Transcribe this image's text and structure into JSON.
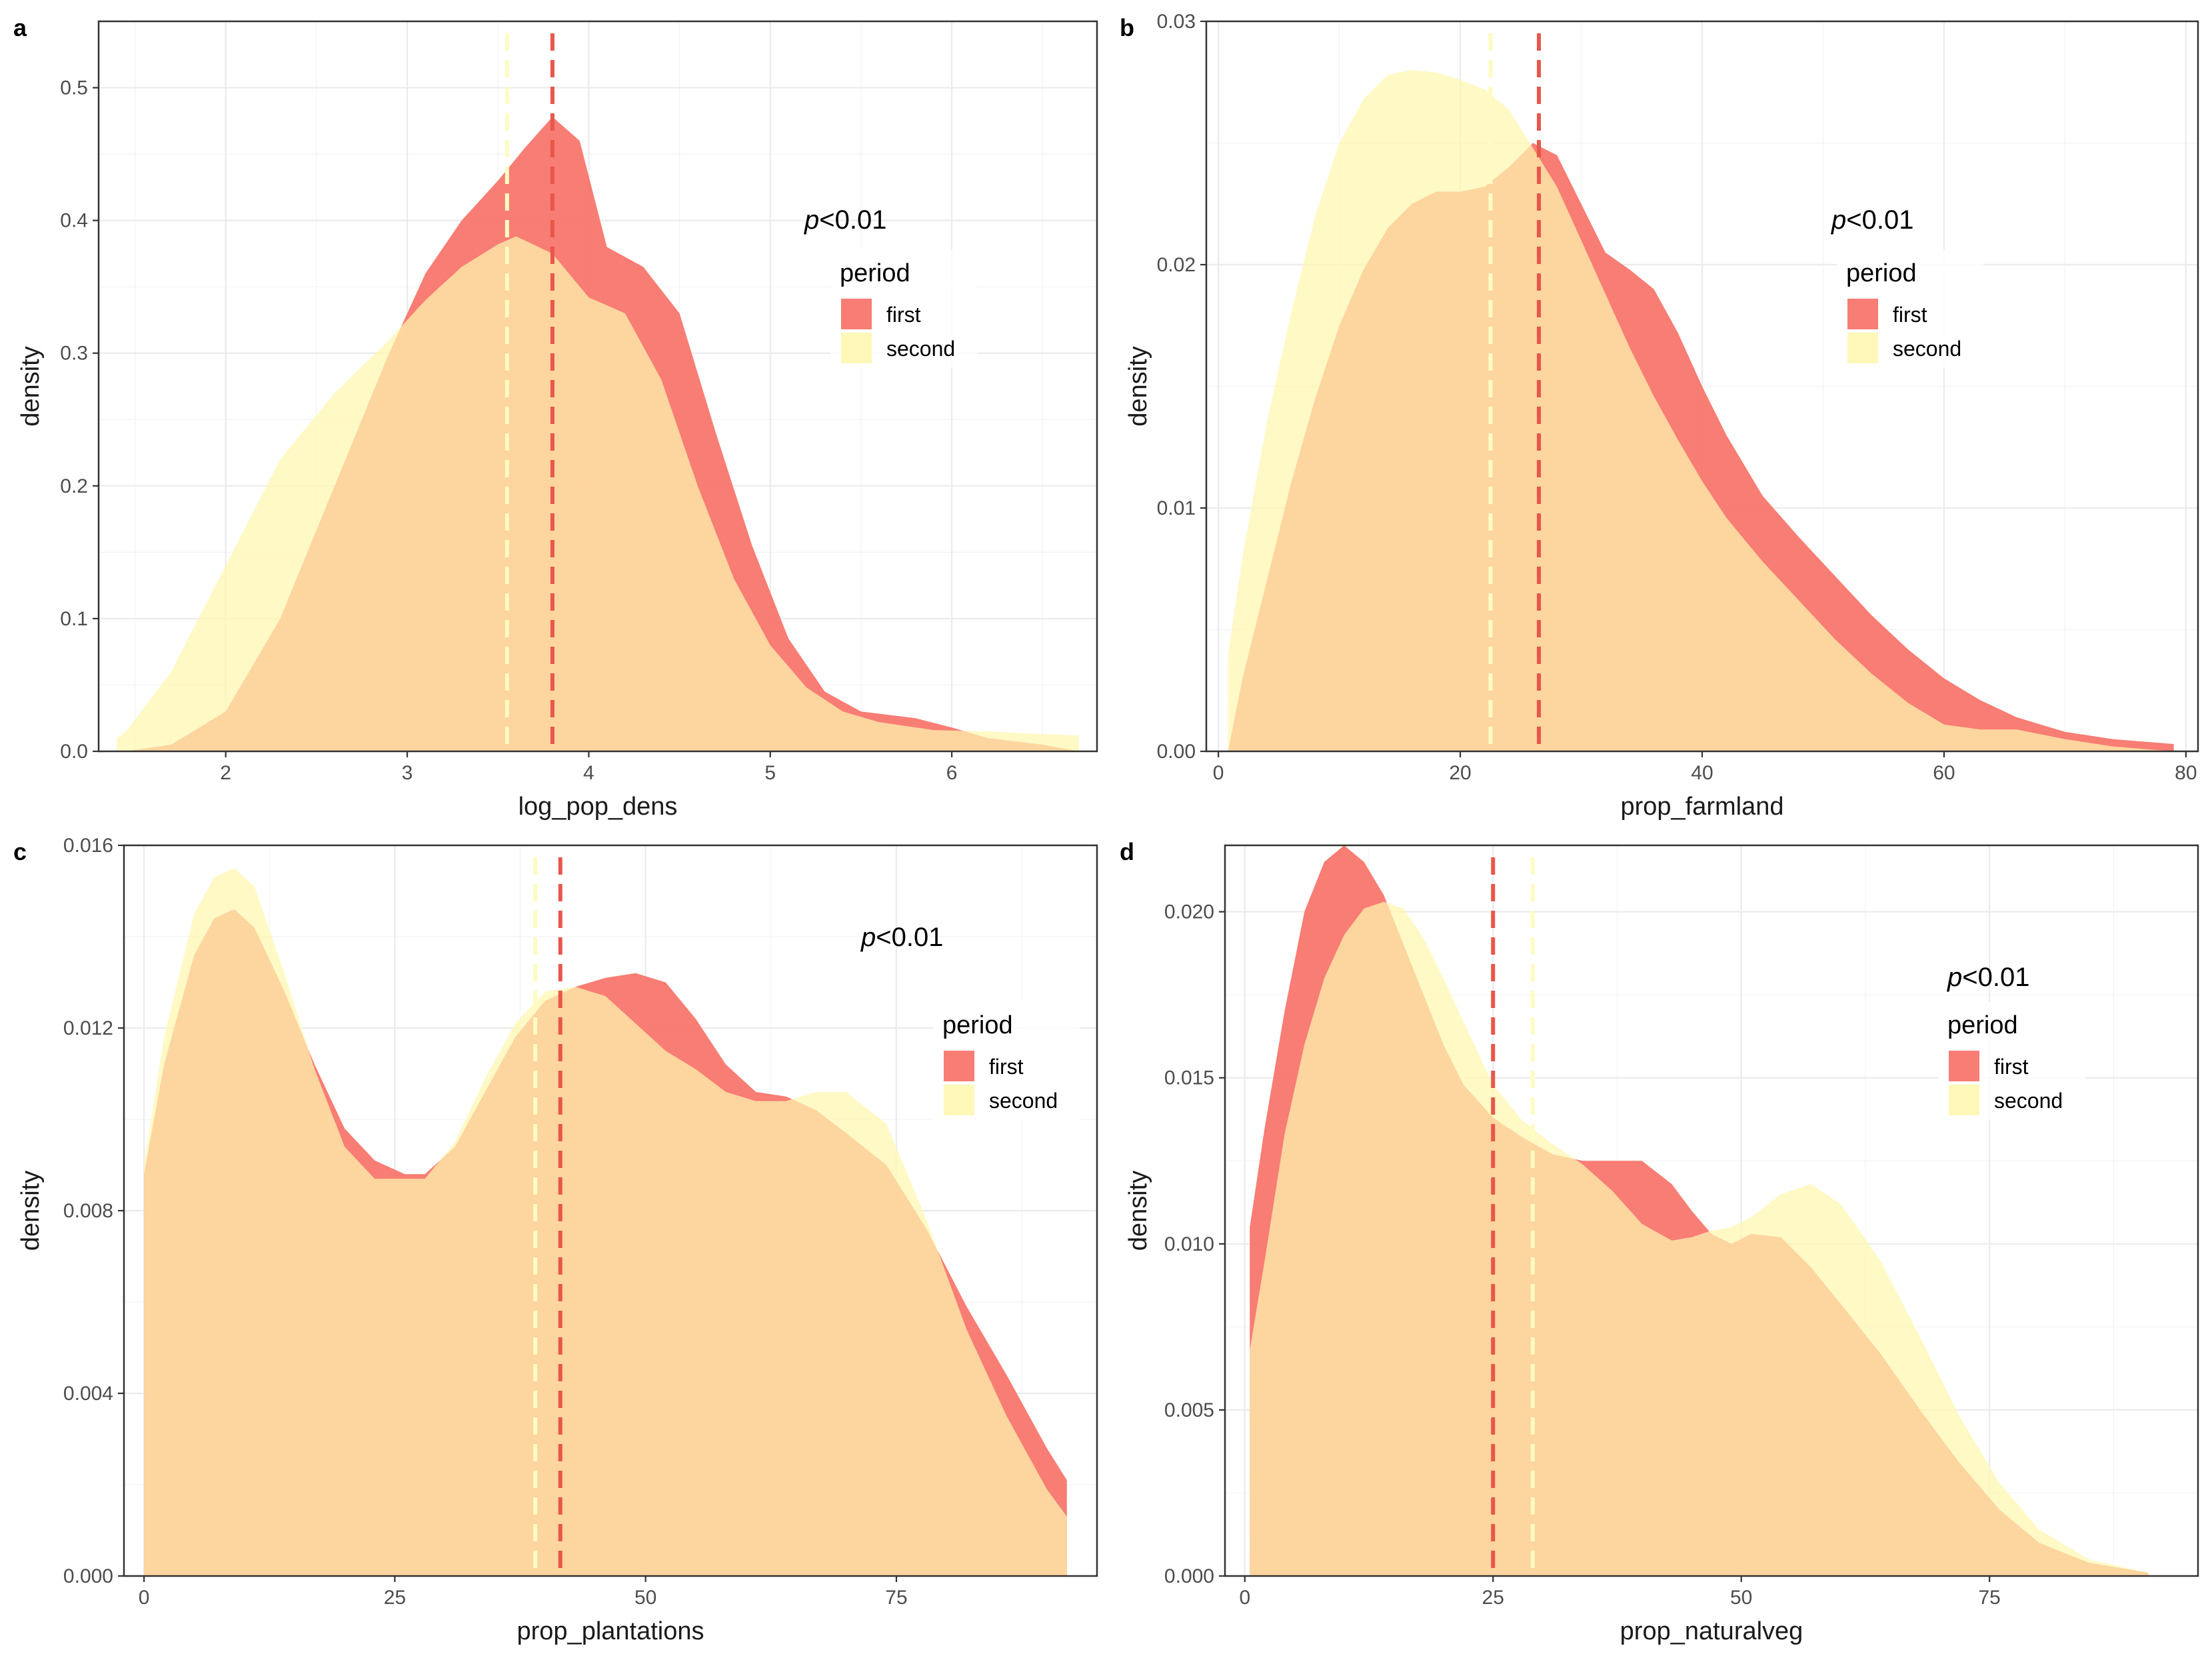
{
  "colors": {
    "first_fill": "#f8766d",
    "second_fill": "#fff7b0",
    "first_line": "#e8574b",
    "second_line": "#fffbc2"
  },
  "chart_data": [
    {
      "panel": "a",
      "type": "area",
      "xlabel": "log_pop_dens",
      "ylabel": "density",
      "xlim": [
        1.3,
        6.8
      ],
      "ylim": [
        0,
        0.55
      ],
      "xticks": [
        2,
        3,
        4,
        5,
        6
      ],
      "yticks": [
        0.0,
        0.1,
        0.2,
        0.3,
        0.4,
        0.5
      ],
      "xtick_labels": [
        "2",
        "3",
        "4",
        "5",
        "6"
      ],
      "ytick_labels": [
        "0.0",
        "0.1",
        "0.2",
        "0.3",
        "0.4",
        "0.5"
      ],
      "annotation": {
        "p": "p",
        "rest": "<0.01"
      },
      "legend": {
        "title": "period",
        "entries": [
          "first",
          "second"
        ]
      },
      "means": {
        "first": 3.8,
        "second": 3.55
      },
      "series": [
        {
          "name": "first",
          "x": [
            1.45,
            1.7,
            2.0,
            2.3,
            2.6,
            2.9,
            3.1,
            3.3,
            3.5,
            3.65,
            3.8,
            3.95,
            4.1,
            4.3,
            4.5,
            4.7,
            4.9,
            5.1,
            5.3,
            5.5,
            5.8,
            6.0,
            6.2,
            6.5,
            6.7
          ],
          "y": [
            0.0,
            0.005,
            0.03,
            0.1,
            0.2,
            0.3,
            0.36,
            0.4,
            0.43,
            0.455,
            0.478,
            0.46,
            0.38,
            0.365,
            0.33,
            0.24,
            0.155,
            0.085,
            0.045,
            0.03,
            0.025,
            0.018,
            0.01,
            0.005,
            0.0
          ]
        },
        {
          "name": "second",
          "x": [
            1.4,
            1.45,
            1.7,
            2.0,
            2.3,
            2.6,
            2.9,
            3.1,
            3.3,
            3.5,
            3.6,
            3.8,
            4.0,
            4.2,
            4.4,
            4.6,
            4.8,
            5.0,
            5.2,
            5.4,
            5.6,
            5.9,
            6.2,
            6.5,
            6.7
          ],
          "y": [
            0.01,
            0.015,
            0.06,
            0.14,
            0.22,
            0.27,
            0.31,
            0.34,
            0.365,
            0.382,
            0.388,
            0.375,
            0.342,
            0.33,
            0.28,
            0.2,
            0.13,
            0.08,
            0.048,
            0.03,
            0.022,
            0.016,
            0.015,
            0.013,
            0.012
          ]
        }
      ]
    },
    {
      "panel": "b",
      "type": "area",
      "xlabel": "prop_farmland",
      "ylabel": "density",
      "xlim": [
        -1,
        81
      ],
      "ylim": [
        0,
        0.03
      ],
      "xticks": [
        0,
        20,
        40,
        60,
        80
      ],
      "yticks": [
        0.0,
        0.01,
        0.02,
        0.03
      ],
      "xtick_labels": [
        "0",
        "20",
        "40",
        "60",
        "80"
      ],
      "ytick_labels": [
        "0.00",
        "0.01",
        "0.02",
        "0.03"
      ],
      "annotation": {
        "p": "p",
        "rest": "<0.01"
      },
      "legend": {
        "title": "period",
        "entries": [
          "first",
          "second"
        ]
      },
      "means": {
        "first": 26.5,
        "second": 22.5
      },
      "series": [
        {
          "name": "first",
          "x": [
            0.8,
            2,
            4,
            6,
            8,
            10,
            12,
            14,
            16,
            18,
            20,
            22,
            24,
            26,
            28,
            30,
            32,
            34,
            36,
            38,
            40,
            42,
            45,
            48,
            51,
            54,
            57,
            60,
            63,
            66,
            70,
            74,
            79
          ],
          "y": [
            0.0,
            0.003,
            0.007,
            0.011,
            0.0145,
            0.0175,
            0.0198,
            0.0215,
            0.0225,
            0.023,
            0.023,
            0.0232,
            0.024,
            0.025,
            0.0245,
            0.0225,
            0.0205,
            0.0198,
            0.019,
            0.0172,
            0.015,
            0.013,
            0.0105,
            0.0088,
            0.0072,
            0.0056,
            0.0042,
            0.003,
            0.0021,
            0.0014,
            0.0008,
            0.0005,
            0.0003
          ]
        },
        {
          "name": "second",
          "x": [
            0.8,
            2,
            4,
            6,
            8,
            10,
            12,
            14,
            16,
            18,
            20,
            22,
            24,
            26,
            28,
            30,
            32,
            34,
            36,
            38,
            40,
            42,
            45,
            48,
            51,
            54,
            57,
            60,
            63,
            66,
            70,
            74,
            79
          ],
          "y": [
            0.004,
            0.008,
            0.0135,
            0.018,
            0.022,
            0.025,
            0.0268,
            0.0278,
            0.028,
            0.0279,
            0.0276,
            0.0272,
            0.0264,
            0.0248,
            0.0232,
            0.021,
            0.0188,
            0.0166,
            0.0146,
            0.0128,
            0.0111,
            0.0096,
            0.0078,
            0.0062,
            0.0046,
            0.0032,
            0.002,
            0.0011,
            0.0009,
            0.0009,
            0.0005,
            0.0002,
            0.0
          ]
        }
      ]
    },
    {
      "panel": "c",
      "type": "area",
      "xlabel": "prop_plantations",
      "ylabel": "density",
      "xlim": [
        -2,
        95
      ],
      "ylim": [
        0,
        0.016
      ],
      "xticks": [
        0,
        25,
        50,
        75
      ],
      "yticks": [
        0.0,
        0.004,
        0.008,
        0.012,
        0.016
      ],
      "xtick_labels": [
        "0",
        "25",
        "50",
        "75"
      ],
      "ytick_labels": [
        "0.000",
        "0.004",
        "0.008",
        "0.012",
        "0.016"
      ],
      "annotation": {
        "p": "p",
        "rest": "<0.01"
      },
      "legend": {
        "title": "period",
        "entries": [
          "first",
          "second"
        ]
      },
      "means": {
        "first": 41.5,
        "second": 39
      },
      "series": [
        {
          "name": "first",
          "x": [
            0,
            2,
            5,
            7,
            9,
            11,
            14,
            17,
            20,
            23,
            26,
            28,
            31,
            34,
            37,
            40,
            43,
            46,
            49,
            52,
            55,
            58,
            61,
            64,
            67,
            70,
            74,
            78,
            82,
            86,
            90,
            92
          ],
          "y": [
            0.0088,
            0.0112,
            0.0136,
            0.0144,
            0.0146,
            0.0142,
            0.0128,
            0.0112,
            0.0098,
            0.0091,
            0.0088,
            0.0088,
            0.0094,
            0.0106,
            0.0118,
            0.0126,
            0.0129,
            0.0131,
            0.0132,
            0.013,
            0.0122,
            0.0112,
            0.0106,
            0.0105,
            0.0102,
            0.0097,
            0.009,
            0.0076,
            0.0059,
            0.0044,
            0.0028,
            0.0021
          ]
        },
        {
          "name": "second",
          "x": [
            0,
            2,
            5,
            7,
            9,
            11,
            14,
            17,
            20,
            23,
            26,
            28,
            31,
            34,
            37,
            40,
            43,
            46,
            49,
            52,
            55,
            58,
            61,
            64,
            67,
            70,
            74,
            78,
            82,
            86,
            90,
            92
          ],
          "y": [
            0.009,
            0.0118,
            0.0145,
            0.0153,
            0.0155,
            0.0151,
            0.0132,
            0.0111,
            0.0094,
            0.0087,
            0.0087,
            0.0087,
            0.0095,
            0.0109,
            0.0121,
            0.0128,
            0.0129,
            0.0127,
            0.0121,
            0.0115,
            0.0111,
            0.0106,
            0.0104,
            0.0104,
            0.0106,
            0.0106,
            0.0099,
            0.0078,
            0.0054,
            0.0035,
            0.0019,
            0.0013
          ]
        }
      ]
    },
    {
      "panel": "d",
      "type": "area",
      "xlabel": "prop_naturalveg",
      "ylabel": "density",
      "xlim": [
        -2,
        96
      ],
      "ylim": [
        0,
        0.022
      ],
      "xticks": [
        0,
        25,
        50,
        75
      ],
      "yticks": [
        0.0,
        0.005,
        0.01,
        0.015,
        0.02
      ],
      "xtick_labels": [
        "0",
        "25",
        "50",
        "75"
      ],
      "ytick_labels": [
        "0.000",
        "0.005",
        "0.010",
        "0.015",
        "0.020"
      ],
      "annotation": {
        "p": "p",
        "rest": "<0.01"
      },
      "legend": {
        "title": "period",
        "entries": [
          "first",
          "second"
        ]
      },
      "means": {
        "first": 25,
        "second": 29
      },
      "series": [
        {
          "name": "first",
          "x": [
            0.5,
            2,
            4,
            6,
            8,
            10,
            12,
            14,
            16,
            18,
            20,
            22,
            25,
            28,
            31,
            34,
            37,
            40,
            43,
            45,
            47,
            49,
            51,
            54,
            57,
            60,
            64,
            68,
            72,
            76,
            80,
            85,
            91
          ],
          "y": [
            0.0105,
            0.0135,
            0.017,
            0.02,
            0.0215,
            0.022,
            0.0215,
            0.0205,
            0.019,
            0.0175,
            0.016,
            0.0148,
            0.0138,
            0.0132,
            0.0127,
            0.0125,
            0.0125,
            0.0125,
            0.0118,
            0.011,
            0.0103,
            0.01,
            0.0103,
            0.0102,
            0.0093,
            0.0082,
            0.0067,
            0.005,
            0.0034,
            0.002,
            0.001,
            0.0004,
            0.0001
          ]
        },
        {
          "name": "second",
          "x": [
            0.5,
            2,
            4,
            6,
            8,
            10,
            12,
            14,
            16,
            18,
            20,
            22,
            25,
            28,
            31,
            34,
            37,
            40,
            43,
            45,
            47,
            49,
            51,
            54,
            57,
            60,
            64,
            68,
            72,
            76,
            80,
            85,
            91
          ],
          "y": [
            0.0068,
            0.0095,
            0.0133,
            0.016,
            0.018,
            0.0193,
            0.0201,
            0.0203,
            0.0201,
            0.0192,
            0.018,
            0.0167,
            0.0148,
            0.0137,
            0.013,
            0.0124,
            0.0116,
            0.0106,
            0.0101,
            0.0102,
            0.0104,
            0.0105,
            0.0108,
            0.0115,
            0.0118,
            0.0112,
            0.0095,
            0.0072,
            0.0048,
            0.0028,
            0.0014,
            0.0005,
            0.0001
          ]
        }
      ]
    }
  ]
}
